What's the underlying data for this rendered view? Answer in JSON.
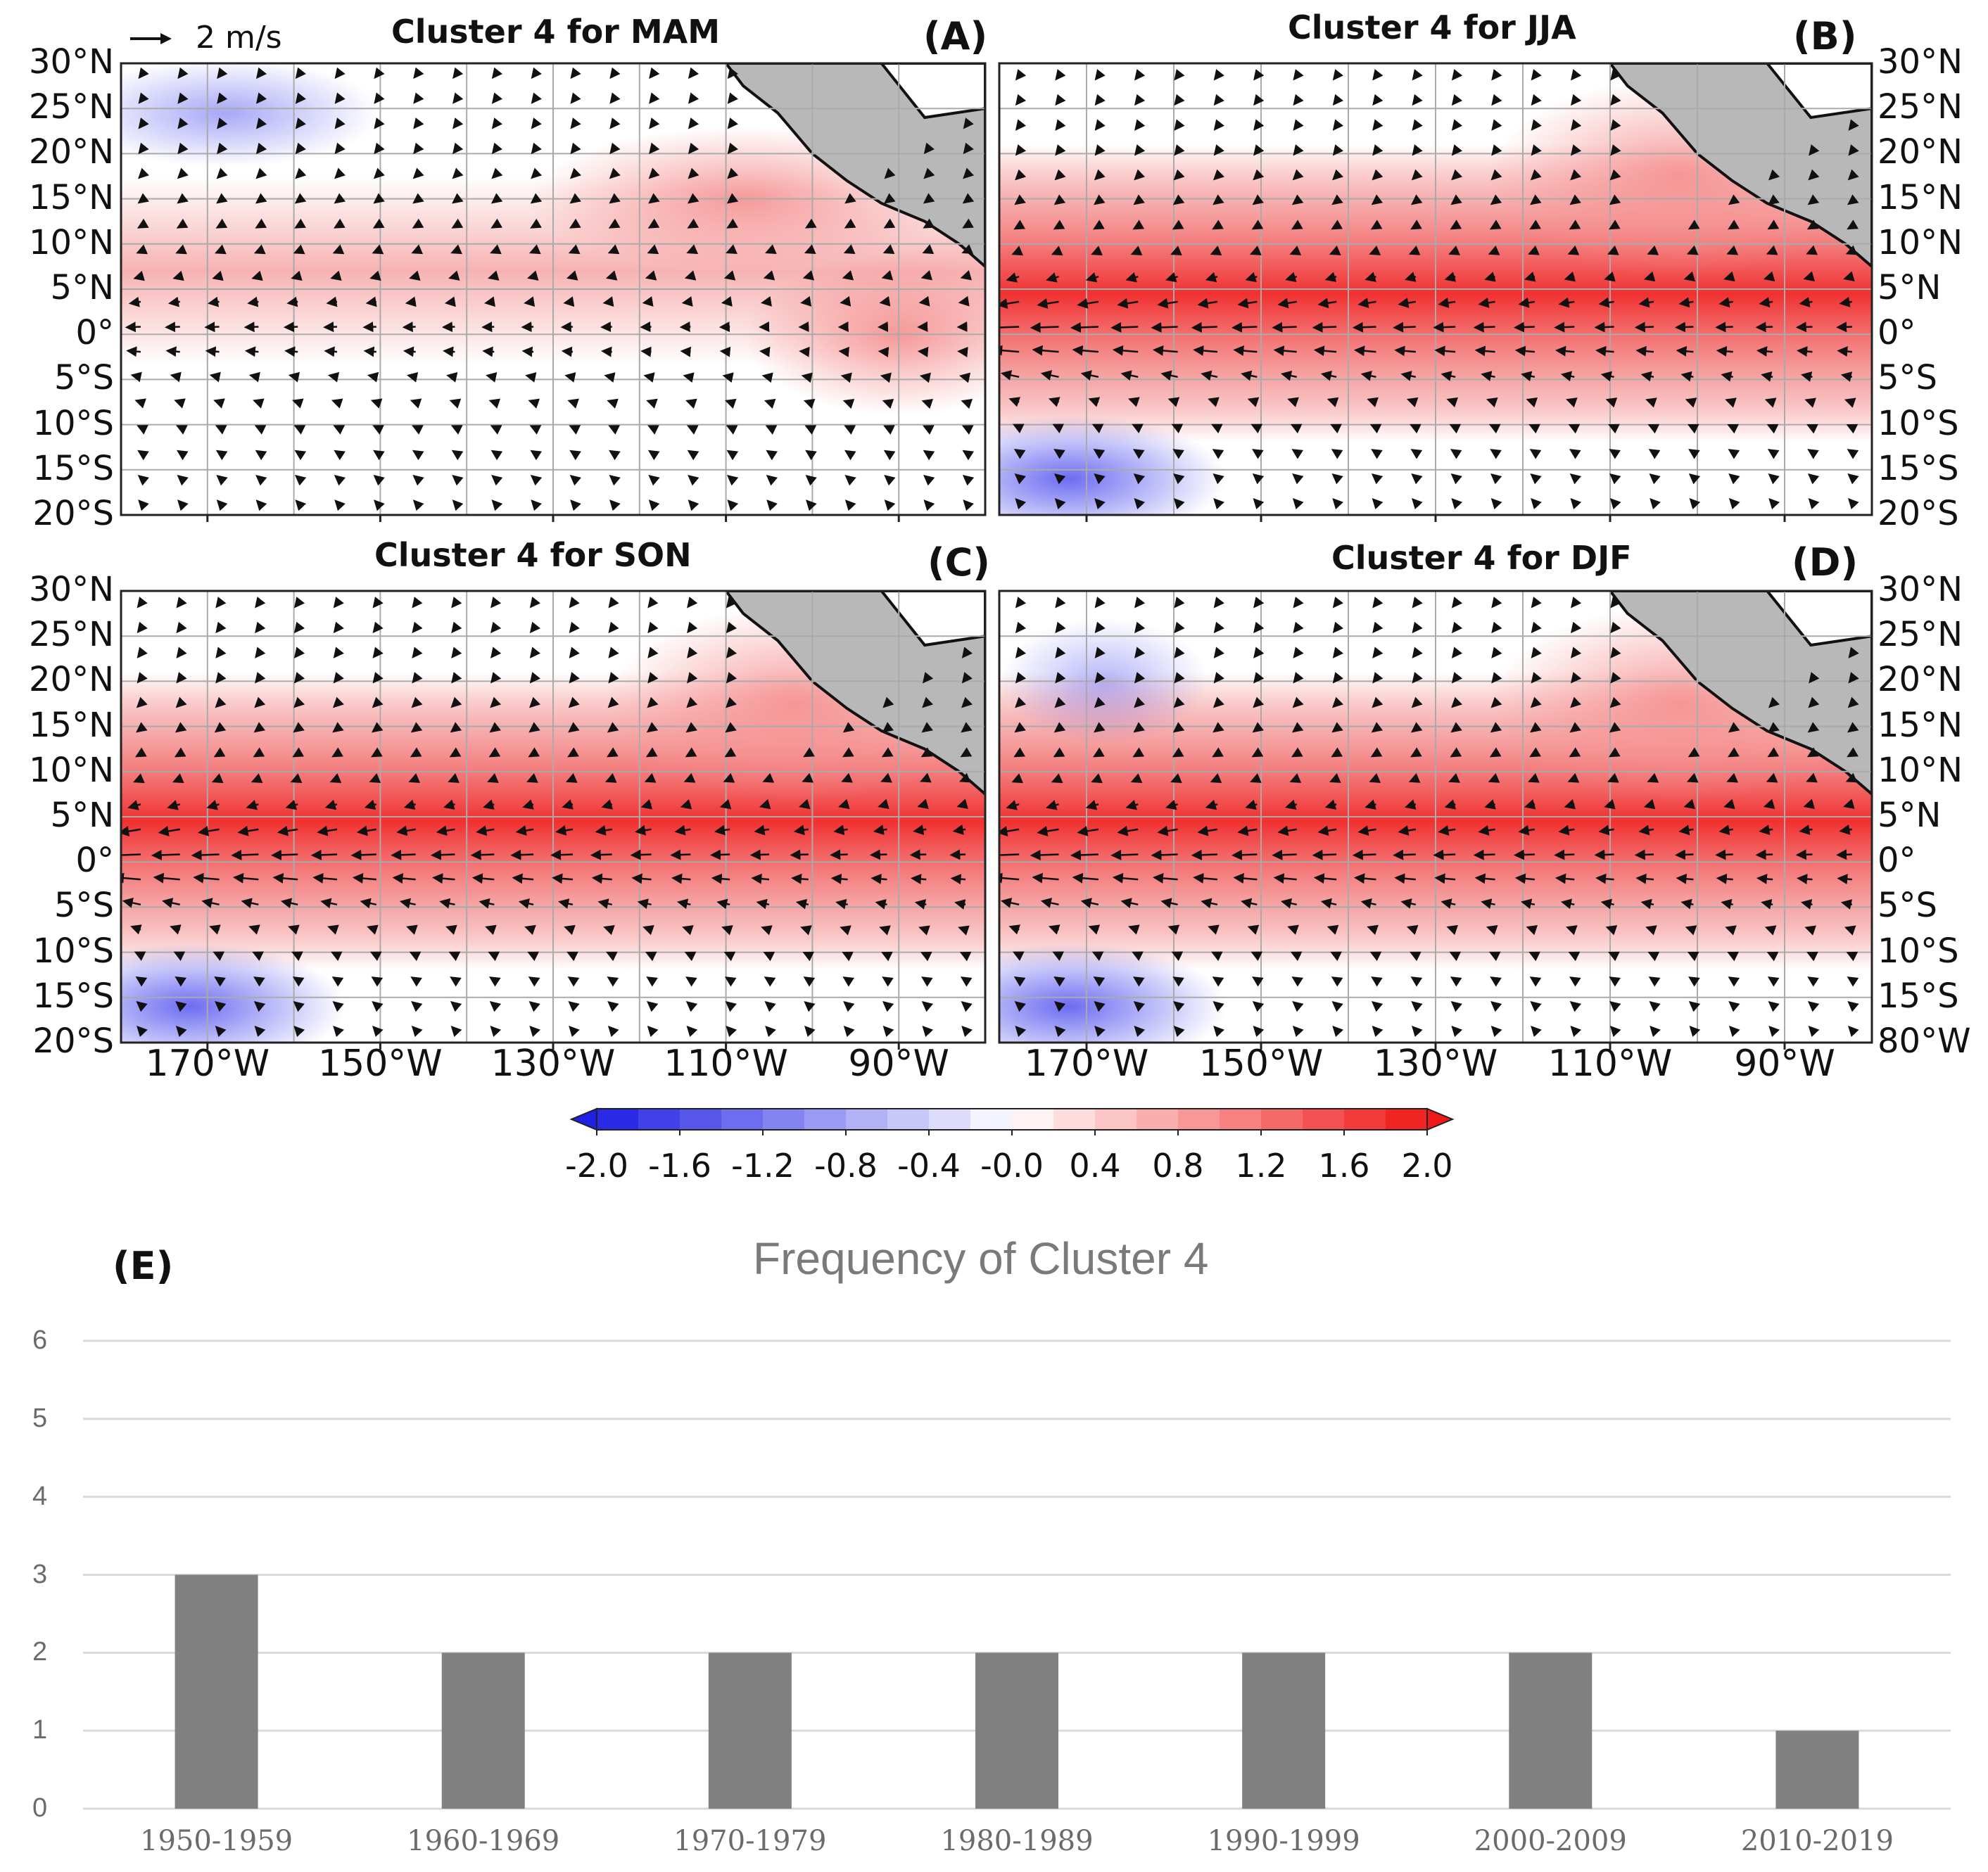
{
  "maps": {
    "scale_label": "2 m/s",
    "panels": [
      {
        "id": "A",
        "tag": "(A)",
        "title": "Cluster 4 for MAM"
      },
      {
        "id": "B",
        "tag": "(B)",
        "title": "Cluster 4 for JJA"
      },
      {
        "id": "C",
        "tag": "(C)",
        "title": "Cluster 4 for SON"
      },
      {
        "id": "D",
        "tag": "(D)",
        "title": "Cluster 4 for DJF"
      }
    ],
    "lat_labels": [
      "30°N",
      "25°N",
      "20°N",
      "15°N",
      "10°N",
      "5°N",
      "0°",
      "5°S",
      "10°S",
      "15°S",
      "20°S"
    ],
    "lat_labels_panel_d": [
      "30°N",
      "25°N",
      "20°N",
      "15°N",
      "10°N",
      "5°N",
      "0°",
      "5°S",
      "10°S",
      "15°S",
      "80°W"
    ],
    "lon_labels": [
      "170°W",
      "150°W",
      "130°W",
      "110°W",
      "90°W"
    ],
    "colorbar": {
      "ticks": [
        "-2.0",
        "-1.6",
        "-1.2",
        "-0.8",
        "-0.4",
        "-0.0",
        "0.4",
        "0.8",
        "1.2",
        "1.6",
        "2.0"
      ],
      "negative_color": "#1f1fe6",
      "neutral_color": "#ffffff",
      "positive_color": "#f01818"
    }
  },
  "chart_data": {
    "type": "bar",
    "label": "(E)",
    "title": "Frequency of Cluster 4",
    "categories": [
      "1950-1959",
      "1960-1969",
      "1970-1979",
      "1980-1989",
      "1990-1999",
      "2000-2009",
      "2010-2019"
    ],
    "values": [
      3,
      2,
      2,
      2,
      2,
      2,
      1
    ],
    "ylim": [
      0,
      6
    ],
    "yticks": [
      "0",
      "1",
      "2",
      "3",
      "4",
      "5",
      "6"
    ],
    "xlabel": "",
    "ylabel": "",
    "bar_color": "#808080",
    "grid": true
  }
}
